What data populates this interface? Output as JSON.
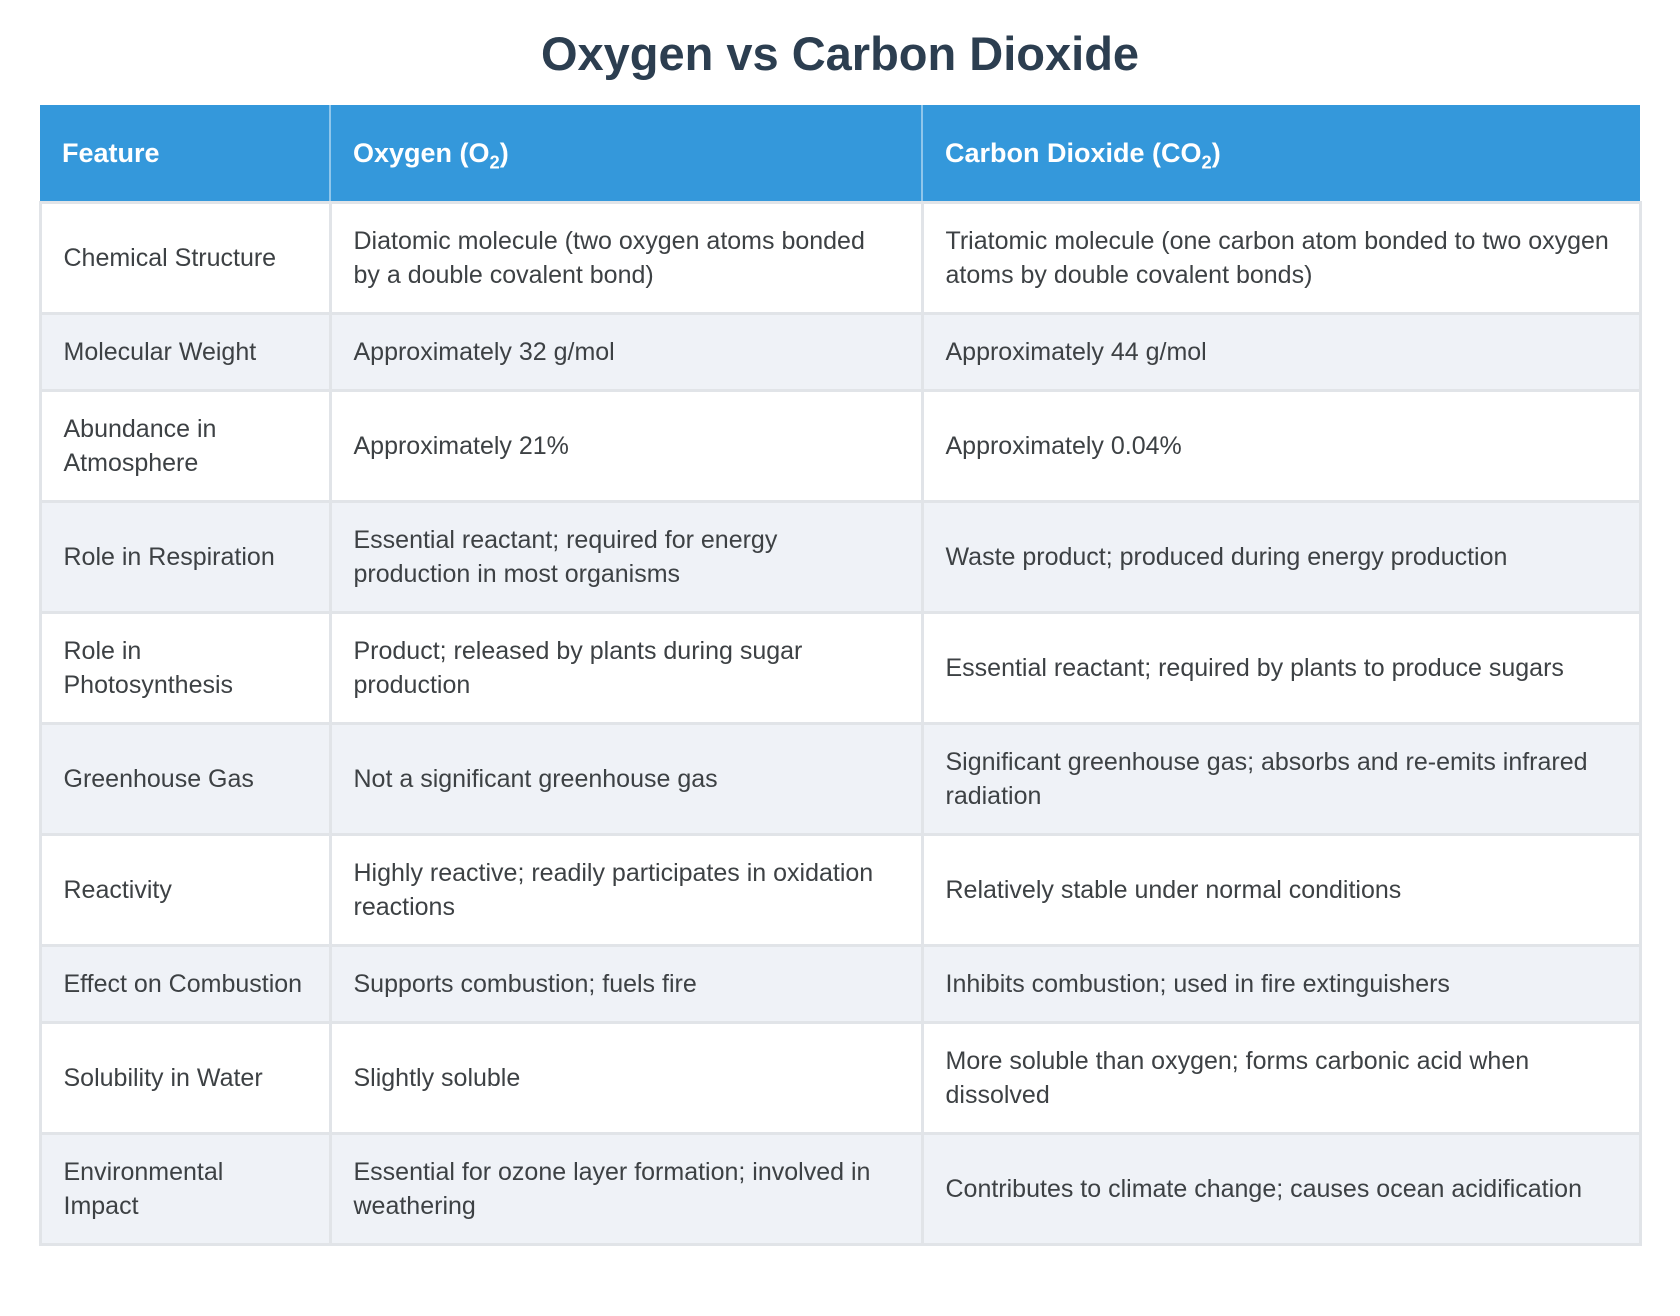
{
  "title": "Oxygen vs Carbon Dioxide",
  "table": {
    "headers": {
      "feature": "Feature",
      "oxygen": {
        "pre": "Oxygen (O",
        "sub": "2",
        "post": ")"
      },
      "co2": {
        "pre": "Carbon Dioxide (CO",
        "sub": "2",
        "post": ")"
      }
    },
    "rows": [
      {
        "feature": "Chemical Structure",
        "oxygen": "Diatomic molecule (two oxygen atoms bonded by a double covalent bond)",
        "co2": "Triatomic molecule (one carbon atom bonded to two oxygen atoms by double covalent bonds)"
      },
      {
        "feature": "Molecular Weight",
        "oxygen": "Approximately 32 g/mol",
        "co2": "Approximately 44 g/mol"
      },
      {
        "feature": "Abundance in Atmosphere",
        "oxygen": "Approximately 21%",
        "co2": "Approximately 0.04%"
      },
      {
        "feature": "Role in Respiration",
        "oxygen": "Essential reactant; required for energy production in most organisms",
        "co2": "Waste product; produced during energy production"
      },
      {
        "feature": "Role in Photosynthesis",
        "oxygen": "Product; released by plants during sugar production",
        "co2": "Essential reactant; required by plants to produce sugars"
      },
      {
        "feature": "Greenhouse Gas",
        "oxygen": "Not a significant greenhouse gas",
        "co2": "Significant greenhouse gas; absorbs and re-emits infrared radiation"
      },
      {
        "feature": "Reactivity",
        "oxygen": "Highly reactive; readily participates in oxidation reactions",
        "co2": "Relatively stable under normal conditions"
      },
      {
        "feature": "Effect on Combustion",
        "oxygen": "Supports combustion; fuels fire",
        "co2": "Inhibits combustion; used in fire extinguishers"
      },
      {
        "feature": "Solubility in Water",
        "oxygen": "Slightly soluble",
        "co2": "More soluble than oxygen; forms carbonic acid when dissolved"
      },
      {
        "feature": "Environmental Impact",
        "oxygen": "Essential for ozone layer formation; involved in weathering",
        "co2": "Contributes to climate change; causes ocean acidification"
      }
    ]
  },
  "colors": {
    "header_bg": "#3498db",
    "header_text": "#ffffff",
    "title_text": "#2c3e50",
    "row_alt_bg": "#eff2f7",
    "border": "#e1e4e8",
    "body_text": "#3d4144"
  }
}
